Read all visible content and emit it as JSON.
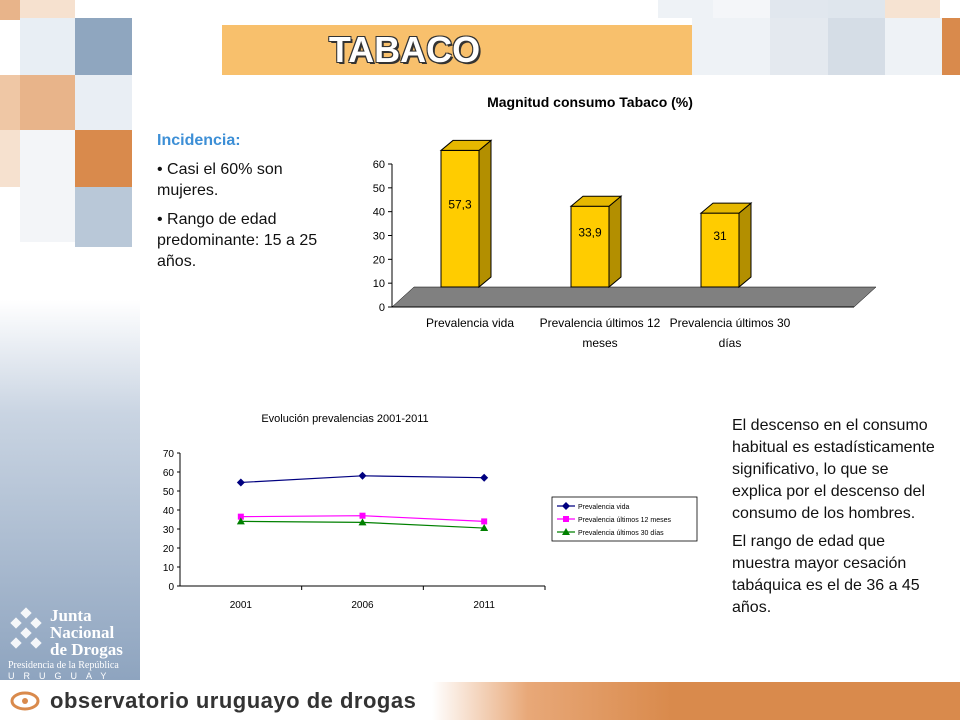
{
  "header": {
    "title": "TABACO"
  },
  "left_text": {
    "heading": "Incidencia:",
    "bullets": [
      "• Casi el 60% son mujeres.",
      "• Rango de edad predominante: 15 a 25 años."
    ]
  },
  "right_text": {
    "paragraphs": [
      "El descenso en el consumo habitual es estadísticamente significativo, lo que se explica por el descenso del consumo de los hombres.",
      "El rango de edad que muestra mayor cesación tabáquica es el de 36 a 45 años."
    ]
  },
  "brand": {
    "org_name_lines": [
      "Junta",
      "Nacional",
      "de Drogas"
    ],
    "org_sub": "Presidencia de la República",
    "country": "URUGUAY",
    "footer": "observatorio uruguayo de drogas"
  },
  "colors": {
    "bar": "#ffcc00",
    "bar_side": "#b38f00",
    "floor": "#808080",
    "series": [
      "#000080",
      "#ff00ff",
      "#008000"
    ]
  },
  "chart_data": [
    {
      "type": "bar",
      "title": "Magnitud consumo Tabaco (%)",
      "categories": [
        "Prevalencia vida",
        "Prevalencia últimos 12 meses",
        "Prevalencia últimos 30 días"
      ],
      "category_lines": [
        [
          "Prevalencia vida"
        ],
        [
          "Prevalencia últimos 12",
          "meses"
        ],
        [
          "Prevalencia últimos 30",
          "días"
        ]
      ],
      "values": [
        57.3,
        33.9,
        31
      ],
      "value_labels": [
        "57,3",
        "33,9",
        "31"
      ],
      "ylim": [
        0,
        60
      ],
      "yticks": [
        0,
        10,
        20,
        30,
        40,
        50,
        60
      ]
    },
    {
      "type": "line",
      "title": "Evolución prevalencias 2001-2011",
      "x": [
        "2001",
        "2006",
        "2011"
      ],
      "ylim": [
        0,
        70
      ],
      "yticks": [
        0,
        10,
        20,
        30,
        40,
        50,
        60,
        70
      ],
      "series": [
        {
          "name": "Prevalencia vida",
          "values": [
            54.5,
            58,
            57
          ],
          "marker": "diamond"
        },
        {
          "name": "Prevalencia últimos 12 meses",
          "values": [
            36.5,
            37,
            34
          ],
          "marker": "square"
        },
        {
          "name": "Prevalencia últimos 30 días",
          "values": [
            34,
            33.5,
            30.5
          ],
          "marker": "triangle"
        }
      ],
      "legend": "right"
    }
  ]
}
